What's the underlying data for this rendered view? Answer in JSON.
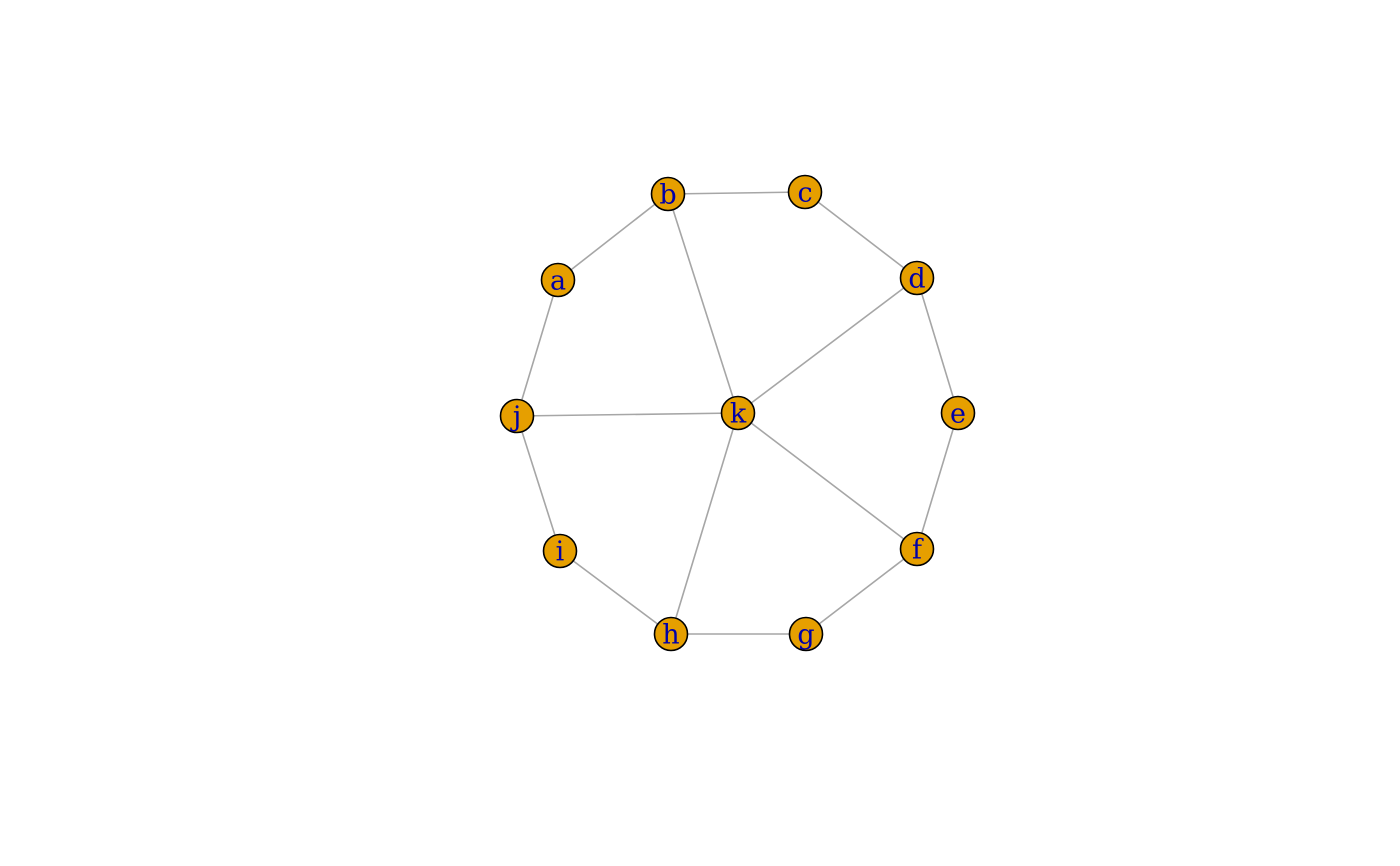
{
  "graph": {
    "nodes": [
      "a",
      "b",
      "c",
      "d",
      "e",
      "f",
      "g",
      "h",
      "i",
      "j",
      "k"
    ],
    "edges": [
      [
        "a",
        "b"
      ],
      [
        "b",
        "c"
      ],
      [
        "c",
        "d"
      ],
      [
        "d",
        "e"
      ],
      [
        "e",
        "f"
      ],
      [
        "f",
        "g"
      ],
      [
        "g",
        "h"
      ],
      [
        "h",
        "i"
      ],
      [
        "i",
        "j"
      ],
      [
        "j",
        "a"
      ],
      [
        "k",
        "b"
      ],
      [
        "k",
        "d"
      ],
      [
        "k",
        "f"
      ],
      [
        "k",
        "h"
      ],
      [
        "k",
        "j"
      ]
    ],
    "colors": {
      "node_fill": "#E69F00",
      "node_border": "#000000",
      "label": "#0000A8",
      "edge": "#A6A6A6"
    }
  }
}
